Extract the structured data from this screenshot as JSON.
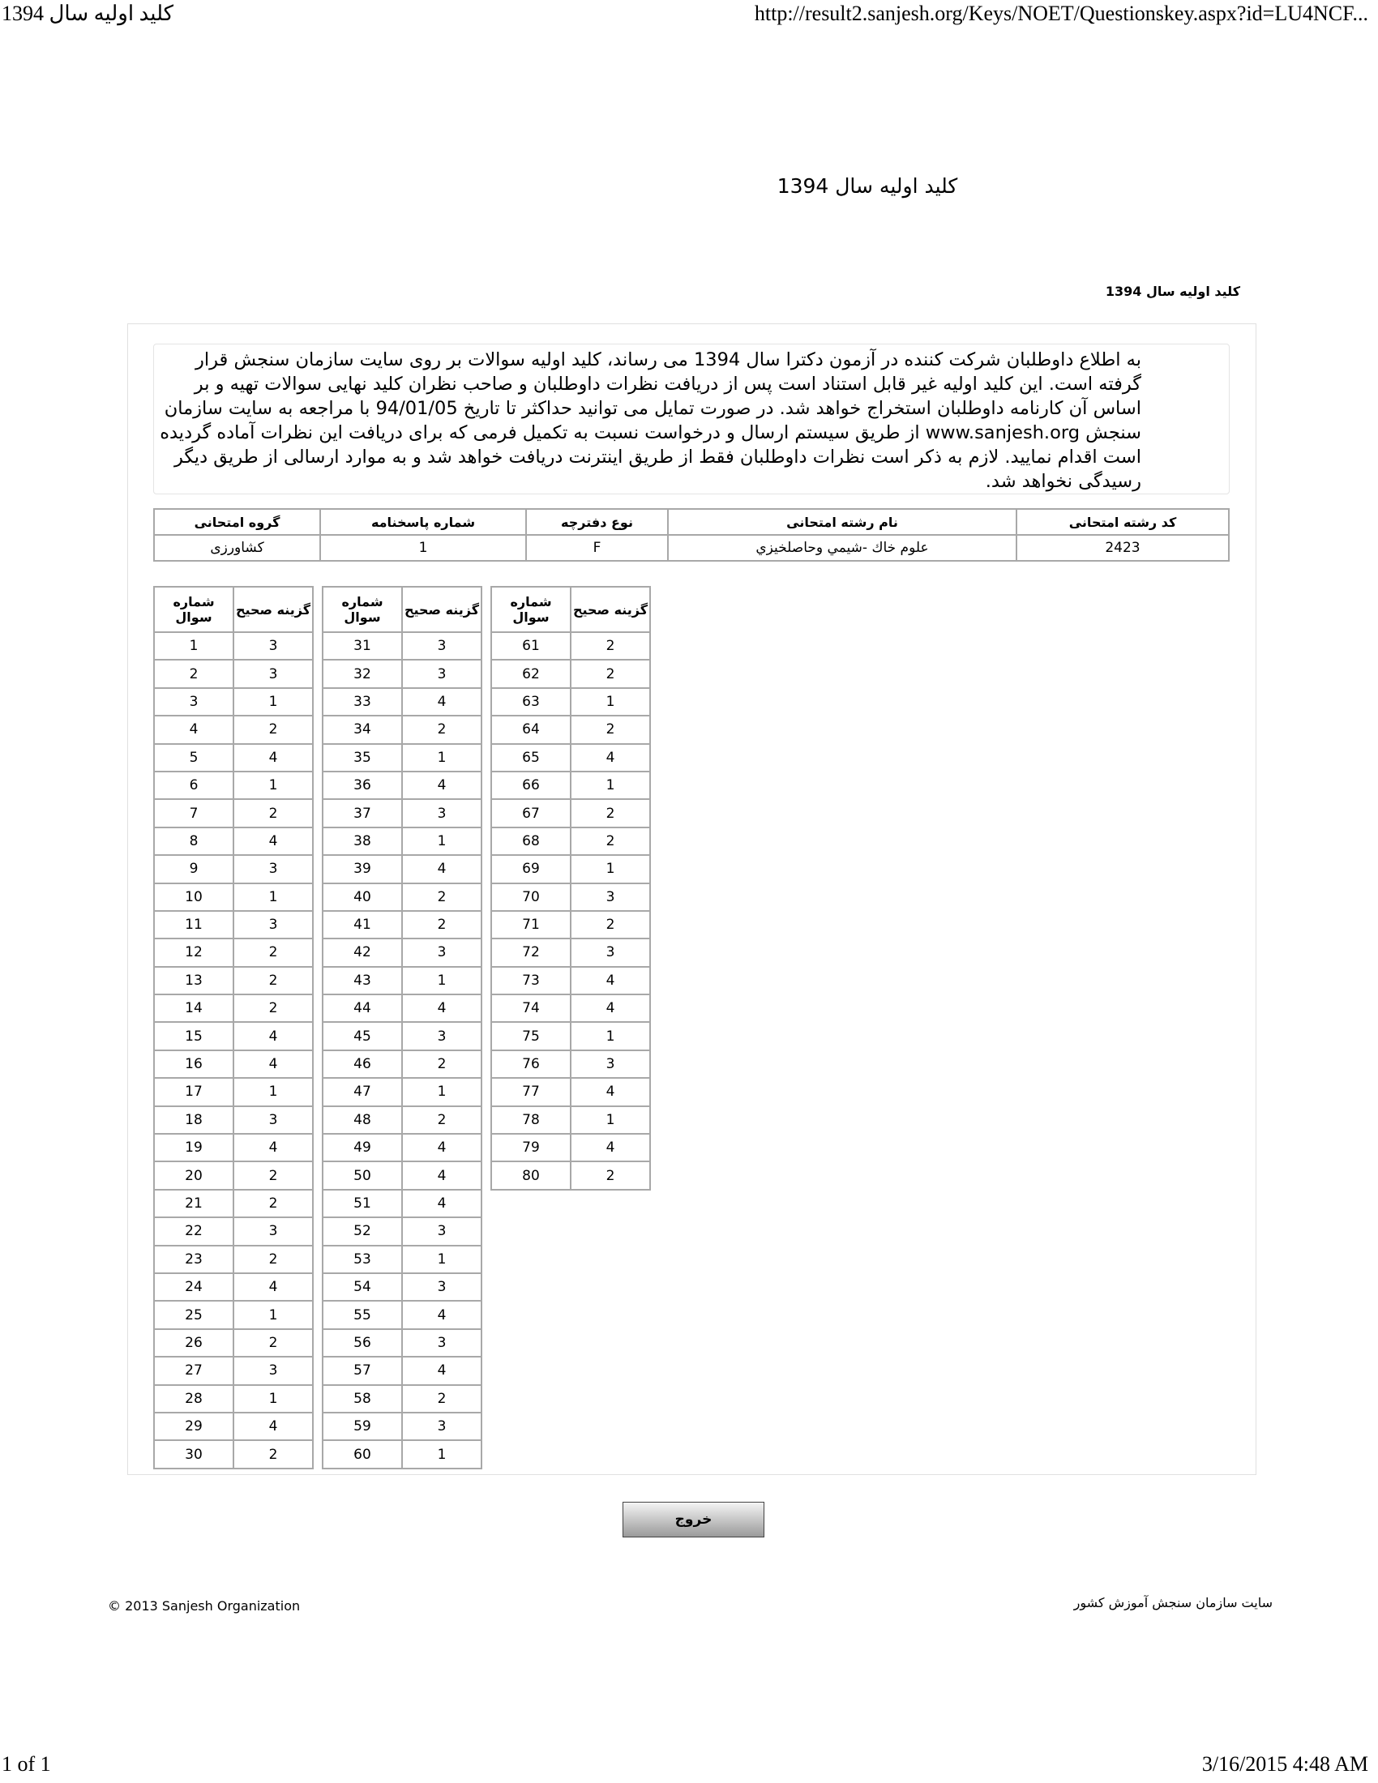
{
  "print_header": {
    "title": "کلید اولیه سال 1394",
    "url": "http://result2.sanjesh.org/Keys/NOET/Questionskey.aspx?id=LU4NCF..."
  },
  "print_footer": {
    "page": "1 of 1",
    "datetime": "3/16/2015 4:48 AM"
  },
  "page_title": "کلید اولیه سال 1394",
  "sub_title": "کلید اولیه سال 1394",
  "notice": "به اطلاع داوطلبان شرکت کننده در آزمون دکترا سال 1394 می رساند، کلید اولیه سوالات بر روی سایت سازمان سنجش قرار گرفته است. این کلید اولیه غیر قابل استناد است پس از دریافت نظرات داوطلبان و صاحب نظران کلید نهایی سوالات تهیه و بر اساس آن کارنامه داوطلبان استخراج خواهد شد. در صورت تمایل می توانید حداکثر تا تاریخ 94/01/05 با مراجعه به سایت سازمان سنجش www.sanjesh.org از طریق  سیستم ارسال و درخواست نسبت به تکمیل فرمی که برای دریافت این نظرات آماده گردیده است اقدام نمایید. لازم به ذکر است نظرات داوطلبان فقط از طریق اینترنت دریافت خواهد شد و به موارد ارسالی از طریق دیگر رسیدگی نخواهد شد.",
  "info": {
    "headers": [
      "کد رشته امتحانی",
      "نام رشته امتحانی",
      "نوع دفترچه",
      "شماره پاسخنامه",
      "گروه امتحانی"
    ],
    "values": [
      "2423",
      "علوم خاك -شيمي وحاصلخيزي",
      "F",
      "1",
      "كشاورزی"
    ]
  },
  "answers": {
    "header_num": "شماره سوال",
    "header_ans": "گزینه صحیح",
    "columns": [
      {
        "start": 1,
        "answers": [
          3,
          3,
          1,
          2,
          4,
          1,
          2,
          4,
          3,
          1,
          3,
          2,
          2,
          2,
          4,
          4,
          1,
          3,
          4,
          2,
          2,
          3,
          2,
          4,
          1,
          2,
          3,
          1,
          4,
          2
        ]
      },
      {
        "start": 31,
        "answers": [
          3,
          3,
          4,
          2,
          1,
          4,
          3,
          1,
          4,
          2,
          2,
          3,
          1,
          4,
          3,
          2,
          1,
          2,
          4,
          4,
          4,
          3,
          1,
          3,
          4,
          3,
          4,
          2,
          3,
          1
        ]
      },
      {
        "start": 61,
        "answers": [
          2,
          2,
          1,
          2,
          4,
          1,
          2,
          2,
          1,
          3,
          2,
          3,
          4,
          4,
          1,
          3,
          4,
          1,
          4,
          2
        ]
      }
    ]
  },
  "exit_label": "خروج",
  "footer": {
    "copyright": "© 2013 Sanjesh Organization",
    "site": "سایت سازمان سنجش آموزش کشور"
  }
}
